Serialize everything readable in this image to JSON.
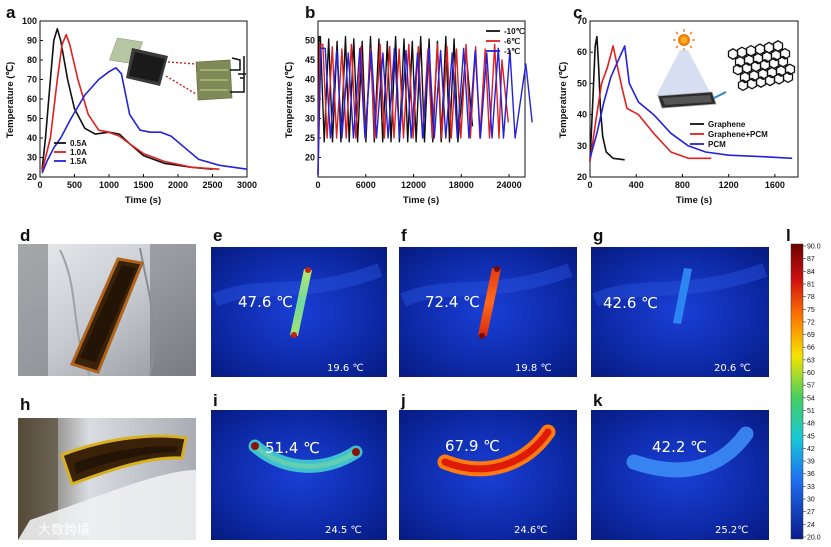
{
  "chart_data": [
    {
      "id": "a",
      "type": "line",
      "panel_label": "a",
      "xlabel": "Time (s)",
      "ylabel": "Temperature (℃)",
      "xlim": [
        0,
        3000
      ],
      "ylim": [
        20,
        100
      ],
      "xticks": [
        0,
        500,
        1000,
        1500,
        2000,
        2500,
        3000
      ],
      "yticks": [
        20,
        30,
        40,
        50,
        60,
        70,
        80,
        90,
        100
      ],
      "series": [
        {
          "name": "0.5A",
          "color": "#111111",
          "points": [
            [
              30,
              24
            ],
            [
              80,
              40
            ],
            [
              150,
              70
            ],
            [
              200,
              90
            ],
            [
              250,
              96
            ],
            [
              300,
              90
            ],
            [
              400,
              70
            ],
            [
              500,
              55
            ],
            [
              650,
              45
            ],
            [
              800,
              42
            ],
            [
              1000,
              43
            ],
            [
              1150,
              42
            ],
            [
              1300,
              37
            ],
            [
              1500,
              31
            ],
            [
              1800,
              27
            ],
            [
              2200,
              25
            ],
            [
              2500,
              24
            ]
          ]
        },
        {
          "name": "1.0A",
          "color": "#e02020",
          "points": [
            [
              30,
              23
            ],
            [
              150,
              40
            ],
            [
              250,
              70
            ],
            [
              320,
              88
            ],
            [
              380,
              93
            ],
            [
              430,
              88
            ],
            [
              550,
              70
            ],
            [
              700,
              52
            ],
            [
              850,
              44
            ],
            [
              1000,
              43
            ],
            [
              1150,
              41
            ],
            [
              1300,
              37
            ],
            [
              1500,
              32
            ],
            [
              1800,
              28
            ],
            [
              2200,
              25
            ],
            [
              2600,
              24
            ]
          ]
        },
        {
          "name": "1.5A",
          "color": "#2222dd",
          "points": [
            [
              30,
              22
            ],
            [
              100,
              28
            ],
            [
              200,
              35
            ],
            [
              300,
              40
            ],
            [
              450,
              50
            ],
            [
              650,
              62
            ],
            [
              850,
              70
            ],
            [
              1000,
              74
            ],
            [
              1100,
              76
            ],
            [
              1180,
              73
            ],
            [
              1300,
              52
            ],
            [
              1450,
              44
            ],
            [
              1600,
              43
            ],
            [
              1750,
              43
            ],
            [
              1900,
              41
            ],
            [
              2100,
              35
            ],
            [
              2300,
              29
            ],
            [
              2600,
              26
            ],
            [
              3000,
              24
            ]
          ]
        }
      ]
    },
    {
      "id": "b",
      "type": "line",
      "panel_label": "b",
      "xlabel": "Time (s)",
      "ylabel": "Temperature (℃)",
      "xlim": [
        0,
        26000
      ],
      "ylim": [
        15,
        55
      ],
      "xticks": [
        0,
        6000,
        12000,
        18000,
        24000
      ],
      "yticks": [
        20,
        25,
        30,
        35,
        40,
        45,
        50
      ],
      "series": [
        {
          "name": "-10℃",
          "color": "#111111",
          "start": 300,
          "period": 1050,
          "low": 24,
          "high": 51,
          "end": 18000
        },
        {
          "name": "-6℃",
          "color": "#e02020",
          "start": 600,
          "period": 1200,
          "low": 25,
          "high": 49,
          "end": 22500
        },
        {
          "name": "-1℃",
          "color": "#2222dd",
          "start": 900,
          "period": 1450,
          "low": 25,
          "high": 48,
          "end": 25500
        }
      ]
    },
    {
      "id": "c",
      "type": "line",
      "panel_label": "c",
      "xlabel": "Time (s)",
      "ylabel": "Temperature (℃)",
      "xlim": [
        0,
        1800
      ],
      "ylim": [
        20,
        70
      ],
      "xticks": [
        0,
        400,
        800,
        1200,
        1600
      ],
      "yticks": [
        20,
        30,
        40,
        50,
        60,
        70
      ],
      "series": [
        {
          "name": "Graphene",
          "color": "#111111",
          "points": [
            [
              0,
              25
            ],
            [
              25,
              45
            ],
            [
              45,
              62
            ],
            [
              60,
              65
            ],
            [
              75,
              55
            ],
            [
              90,
              42
            ],
            [
              110,
              33
            ],
            [
              140,
              28
            ],
            [
              200,
              26
            ],
            [
              300,
              25.5
            ]
          ]
        },
        {
          "name": "Graphene+PCM",
          "color": "#e02020",
          "points": [
            [
              0,
              25
            ],
            [
              50,
              38
            ],
            [
              100,
              50
            ],
            [
              150,
              55
            ],
            [
              200,
              62
            ],
            [
              240,
              55
            ],
            [
              280,
              48
            ],
            [
              320,
              42
            ],
            [
              420,
              40
            ],
            [
              550,
              34
            ],
            [
              700,
              28
            ],
            [
              850,
              26
            ],
            [
              1050,
              26
            ]
          ]
        },
        {
          "name": "PCM",
          "color": "#2222dd",
          "points": [
            [
              0,
              26
            ],
            [
              60,
              34
            ],
            [
              120,
              44
            ],
            [
              180,
              52
            ],
            [
              240,
              57
            ],
            [
              300,
              62
            ],
            [
              340,
              50
            ],
            [
              420,
              44
            ],
            [
              550,
              40
            ],
            [
              700,
              34
            ],
            [
              850,
              30
            ],
            [
              1000,
              28
            ],
            [
              1200,
              27
            ],
            [
              1500,
              26.5
            ],
            [
              1750,
              26
            ]
          ]
        }
      ]
    }
  ],
  "photos": [
    {
      "label": "d",
      "alt": "Wearable heating strip on sleeve"
    },
    {
      "label": "h",
      "alt": "Wearable heating strip wrapped around elbow"
    }
  ],
  "thermal": [
    {
      "label": "e",
      "center_temp": "47.6 ℃",
      "ambient": "19.6 ℃"
    },
    {
      "label": "f",
      "center_temp": "72.4 ℃",
      "ambient": "19.8 ℃"
    },
    {
      "label": "g",
      "center_temp": "42.6 ℃",
      "ambient": "20.6 ℃"
    },
    {
      "label": "i",
      "center_temp": "51.4 ℃",
      "ambient": "24.5 ℃"
    },
    {
      "label": "j",
      "center_temp": "67.9 ℃",
      "ambient": "24.6℃"
    },
    {
      "label": "k",
      "center_temp": "42.2 ℃",
      "ambient": "25.2℃"
    }
  ],
  "colorbar": {
    "label": "l",
    "ticks": [
      "90.0",
      "87",
      "84",
      "81",
      "78",
      "75",
      "72",
      "69",
      "66",
      "63",
      "60",
      "57",
      "54",
      "51",
      "48",
      "45",
      "42",
      "39",
      "36",
      "33",
      "30",
      "27",
      "24",
      "20.0"
    ]
  },
  "watermark": "大数跨境",
  "colors": {
    "ir_background": "#0a1f9a",
    "black": "#111111",
    "red": "#e02020",
    "blue": "#2222dd"
  }
}
